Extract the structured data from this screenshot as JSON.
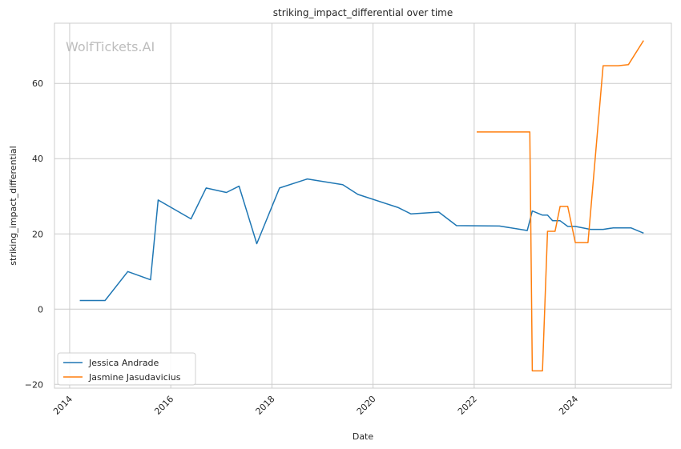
{
  "watermark": "WolfTickets.AI",
  "chart_data": {
    "type": "line",
    "title": "striking_impact_differential over time",
    "xlabel": "Date",
    "ylabel": "striking_impact_differential",
    "xlim": [
      2013.7,
      2025.9
    ],
    "ylim": [
      -21,
      76
    ],
    "xticks": [
      2014,
      2016,
      2018,
      2020,
      2022,
      2024
    ],
    "yticks": [
      -20,
      0,
      20,
      40,
      60
    ],
    "grid": true,
    "legend_position": "lower-left",
    "series": [
      {
        "name": "Jessica Andrade",
        "color": "#1f77b4",
        "points": [
          [
            2014.2,
            2.3
          ],
          [
            2014.7,
            2.3
          ],
          [
            2015.15,
            10.0
          ],
          [
            2015.6,
            7.8
          ],
          [
            2015.75,
            29.0
          ],
          [
            2016.4,
            24.0
          ],
          [
            2016.7,
            32.2
          ],
          [
            2017.1,
            31.0
          ],
          [
            2017.35,
            32.7
          ],
          [
            2017.7,
            17.4
          ],
          [
            2018.15,
            32.2
          ],
          [
            2018.7,
            34.6
          ],
          [
            2019.4,
            33.1
          ],
          [
            2019.7,
            30.5
          ],
          [
            2020.5,
            27.0
          ],
          [
            2020.75,
            25.3
          ],
          [
            2021.3,
            25.8
          ],
          [
            2021.65,
            22.2
          ],
          [
            2022.5,
            22.1
          ],
          [
            2023.05,
            20.9
          ],
          [
            2023.15,
            26.1
          ],
          [
            2023.35,
            25.0
          ],
          [
            2023.45,
            25.0
          ],
          [
            2023.55,
            23.5
          ],
          [
            2023.7,
            23.5
          ],
          [
            2023.85,
            22.0
          ],
          [
            2024.0,
            22.0
          ],
          [
            2024.3,
            21.2
          ],
          [
            2024.55,
            21.2
          ],
          [
            2024.75,
            21.6
          ],
          [
            2025.1,
            21.6
          ],
          [
            2025.35,
            20.2
          ]
        ]
      },
      {
        "name": "Jasmine Jasudavicius",
        "color": "#ff7f0e",
        "points": [
          [
            2022.05,
            47.1
          ],
          [
            2023.1,
            47.1
          ],
          [
            2023.15,
            -16.4
          ],
          [
            2023.35,
            -16.4
          ],
          [
            2023.45,
            20.7
          ],
          [
            2023.6,
            20.7
          ],
          [
            2023.7,
            27.3
          ],
          [
            2023.85,
            27.3
          ],
          [
            2024.0,
            17.7
          ],
          [
            2024.25,
            17.7
          ],
          [
            2024.55,
            64.7
          ],
          [
            2024.85,
            64.7
          ],
          [
            2025.05,
            65.0
          ],
          [
            2025.35,
            71.4
          ]
        ]
      }
    ]
  }
}
